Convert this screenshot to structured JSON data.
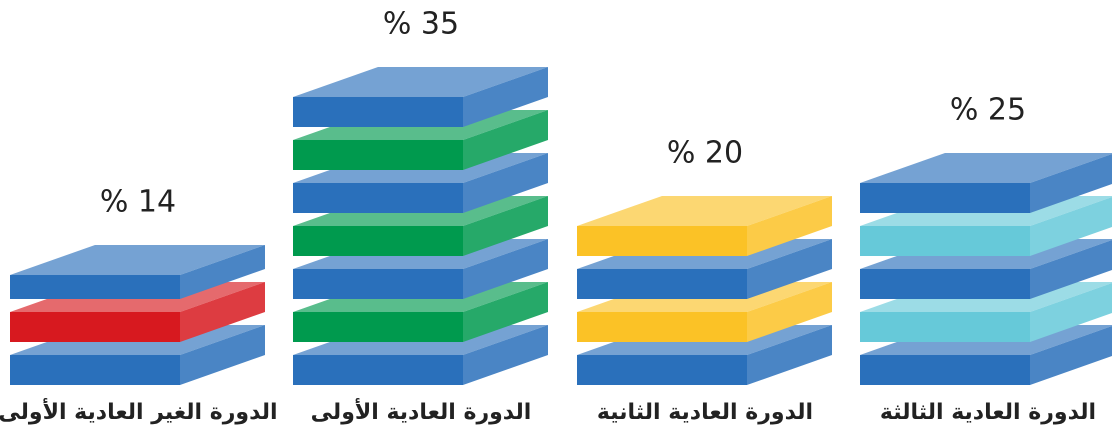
{
  "chart_data": {
    "type": "slab-stack",
    "categories": [
      "الدورة الغير العادية الأولى",
      "الدورة العادية الأولى",
      "الدورة العادية الثانية",
      "الدورة العادية الثالثة"
    ],
    "values": [
      14,
      35,
      20,
      25
    ],
    "value_labels": [
      "% 14",
      "% 35",
      "% 20",
      "% 25"
    ],
    "color": "#2a70bb",
    "colors": [
      "#d7191f",
      "#009a4e",
      "#fbc226",
      "#66c9d9"
    ]
  }
}
